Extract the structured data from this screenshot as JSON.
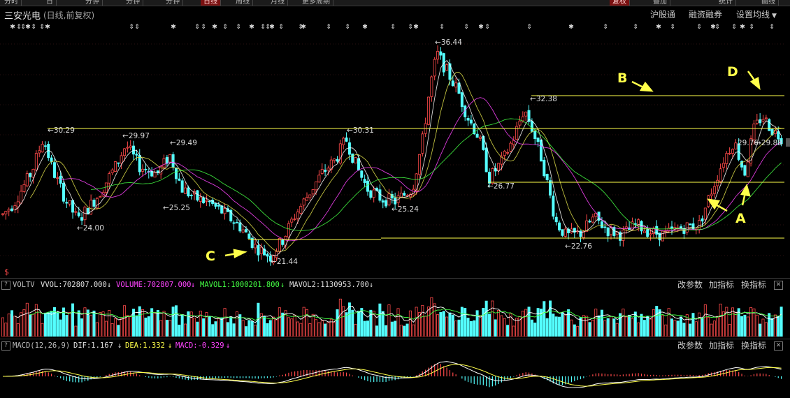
{
  "header": {
    "stock_name": "三安光电",
    "mode": "(日线,前复权)",
    "btn_hgt": "沪股通",
    "btn_margin": "融资融券",
    "btn_ma": "设置均线"
  },
  "top_tabs": [
    "分时",
    "日",
    "分钟",
    "分钟",
    "分钟",
    "日线",
    "周线",
    "月线",
    "更多周期"
  ],
  "top_tabs_right": [
    "复权",
    "叠加",
    "统计",
    "画线"
  ],
  "price_labels": [
    {
      "id": "p3029",
      "text": "30.29"
    },
    {
      "id": "p2997",
      "text": "29.97"
    },
    {
      "id": "p2949",
      "text": "29.49"
    },
    {
      "id": "p2525",
      "text": "25.25"
    },
    {
      "id": "p2400",
      "text": "24.00"
    },
    {
      "id": "p2144",
      "text": "21.44"
    },
    {
      "id": "p3031",
      "text": "30.31"
    },
    {
      "id": "p2524",
      "text": "25.24"
    },
    {
      "id": "p3644",
      "text": "36.44"
    },
    {
      "id": "p3238",
      "text": "32.38"
    },
    {
      "id": "p2677",
      "text": "26.77"
    },
    {
      "id": "p2276",
      "text": "22.76"
    },
    {
      "id": "p2976",
      "text": "29.76"
    },
    {
      "id": "p2988",
      "text": "29.88"
    }
  ],
  "annotations": {
    "A": "A",
    "B": "B",
    "C": "C",
    "D": "D"
  },
  "dollar_icon_text": "$",
  "volume_pane": {
    "name": "VOLTV",
    "vvol": "VVOL:702807.000",
    "volume": "VOLUME:702807.000",
    "mavol1": "MAVOL1:1000201.800",
    "mavol2": "MAVOL2:1130953.700",
    "btn_params": "改参数",
    "btn_add": "加指标",
    "btn_switch": "换指标"
  },
  "macd_pane": {
    "name": "MACD(12,26,9)",
    "dif": "DIF:1.167",
    "dea": "DEA:1.332",
    "macd": "MACD:-0.329",
    "btn_params": "改参数",
    "btn_add": "加指标",
    "btn_switch": "换指标"
  },
  "colors": {
    "up": "#ff4a4a",
    "down": "#54ffff",
    "line": "#ffff4a",
    "ma1": "#ffffff",
    "ma2": "#e0e04a",
    "ma3": "#ff44ff",
    "ma4": "#44ff44"
  },
  "chart_data": {
    "type": "candlestick",
    "symbol": "三安光电",
    "ylim": [
      20.5,
      38.0
    ],
    "annotated_highs_lows": [
      30.29,
      29.97,
      29.49,
      25.25,
      24.0,
      21.44,
      30.31,
      25.24,
      36.44,
      32.38,
      26.77,
      22.76,
      29.76,
      29.88
    ],
    "horizontal_lines": [
      32.38,
      30.29,
      26.77,
      22.76,
      22.76
    ],
    "price_path": [
      [
        0,
        24.5
      ],
      [
        20,
        25.5
      ],
      [
        45,
        27.6
      ],
      [
        62,
        30.0
      ],
      [
        75,
        27.8
      ],
      [
        95,
        25.6
      ],
      [
        112,
        24.3
      ],
      [
        140,
        26.0
      ],
      [
        165,
        28.0
      ],
      [
        180,
        29.5
      ],
      [
        200,
        28.0
      ],
      [
        225,
        27.5
      ],
      [
        243,
        28.8
      ],
      [
        260,
        26.5
      ],
      [
        280,
        25.8
      ],
      [
        300,
        25.5
      ],
      [
        320,
        24.8
      ],
      [
        345,
        23.8
      ],
      [
        365,
        22.5
      ],
      [
        387,
        21.8
      ],
      [
        405,
        23.0
      ],
      [
        420,
        24.5
      ],
      [
        440,
        26.0
      ],
      [
        460,
        27.5
      ],
      [
        480,
        28.5
      ],
      [
        495,
        29.9
      ],
      [
        510,
        28.0
      ],
      [
        525,
        26.5
      ],
      [
        545,
        25.8
      ],
      [
        565,
        25.6
      ],
      [
        590,
        26.5
      ],
      [
        605,
        30.0
      ],
      [
        615,
        33.5
      ],
      [
        625,
        35.8
      ],
      [
        640,
        34.5
      ],
      [
        655,
        33.2
      ],
      [
        668,
        31.5
      ],
      [
        685,
        30.0
      ],
      [
        700,
        27.2
      ],
      [
        720,
        28.5
      ],
      [
        735,
        30.0
      ],
      [
        750,
        32.0
      ],
      [
        762,
        30.5
      ],
      [
        775,
        28.5
      ],
      [
        795,
        24.2
      ],
      [
        810,
        23.2
      ],
      [
        830,
        23.4
      ],
      [
        850,
        24.5
      ],
      [
        870,
        23.6
      ],
      [
        890,
        23.3
      ],
      [
        910,
        24.0
      ],
      [
        930,
        23.5
      ],
      [
        950,
        23.3
      ],
      [
        975,
        23.8
      ],
      [
        1000,
        24.0
      ],
      [
        1015,
        26.0
      ],
      [
        1035,
        28.5
      ],
      [
        1050,
        29.8
      ],
      [
        1065,
        27.5
      ],
      [
        1078,
        30.5
      ],
      [
        1090,
        31.5
      ],
      [
        1105,
        30.5
      ],
      [
        1118,
        30.0
      ]
    ],
    "volume": {
      "vvol": 702807.0,
      "volume": 702807.0,
      "mavol1": 1000201.8,
      "mavol2": 1130953.7
    },
    "macd": {
      "params": [
        12,
        26,
        9
      ],
      "dif": 1.167,
      "dea": 1.332,
      "macd": -0.329
    }
  }
}
